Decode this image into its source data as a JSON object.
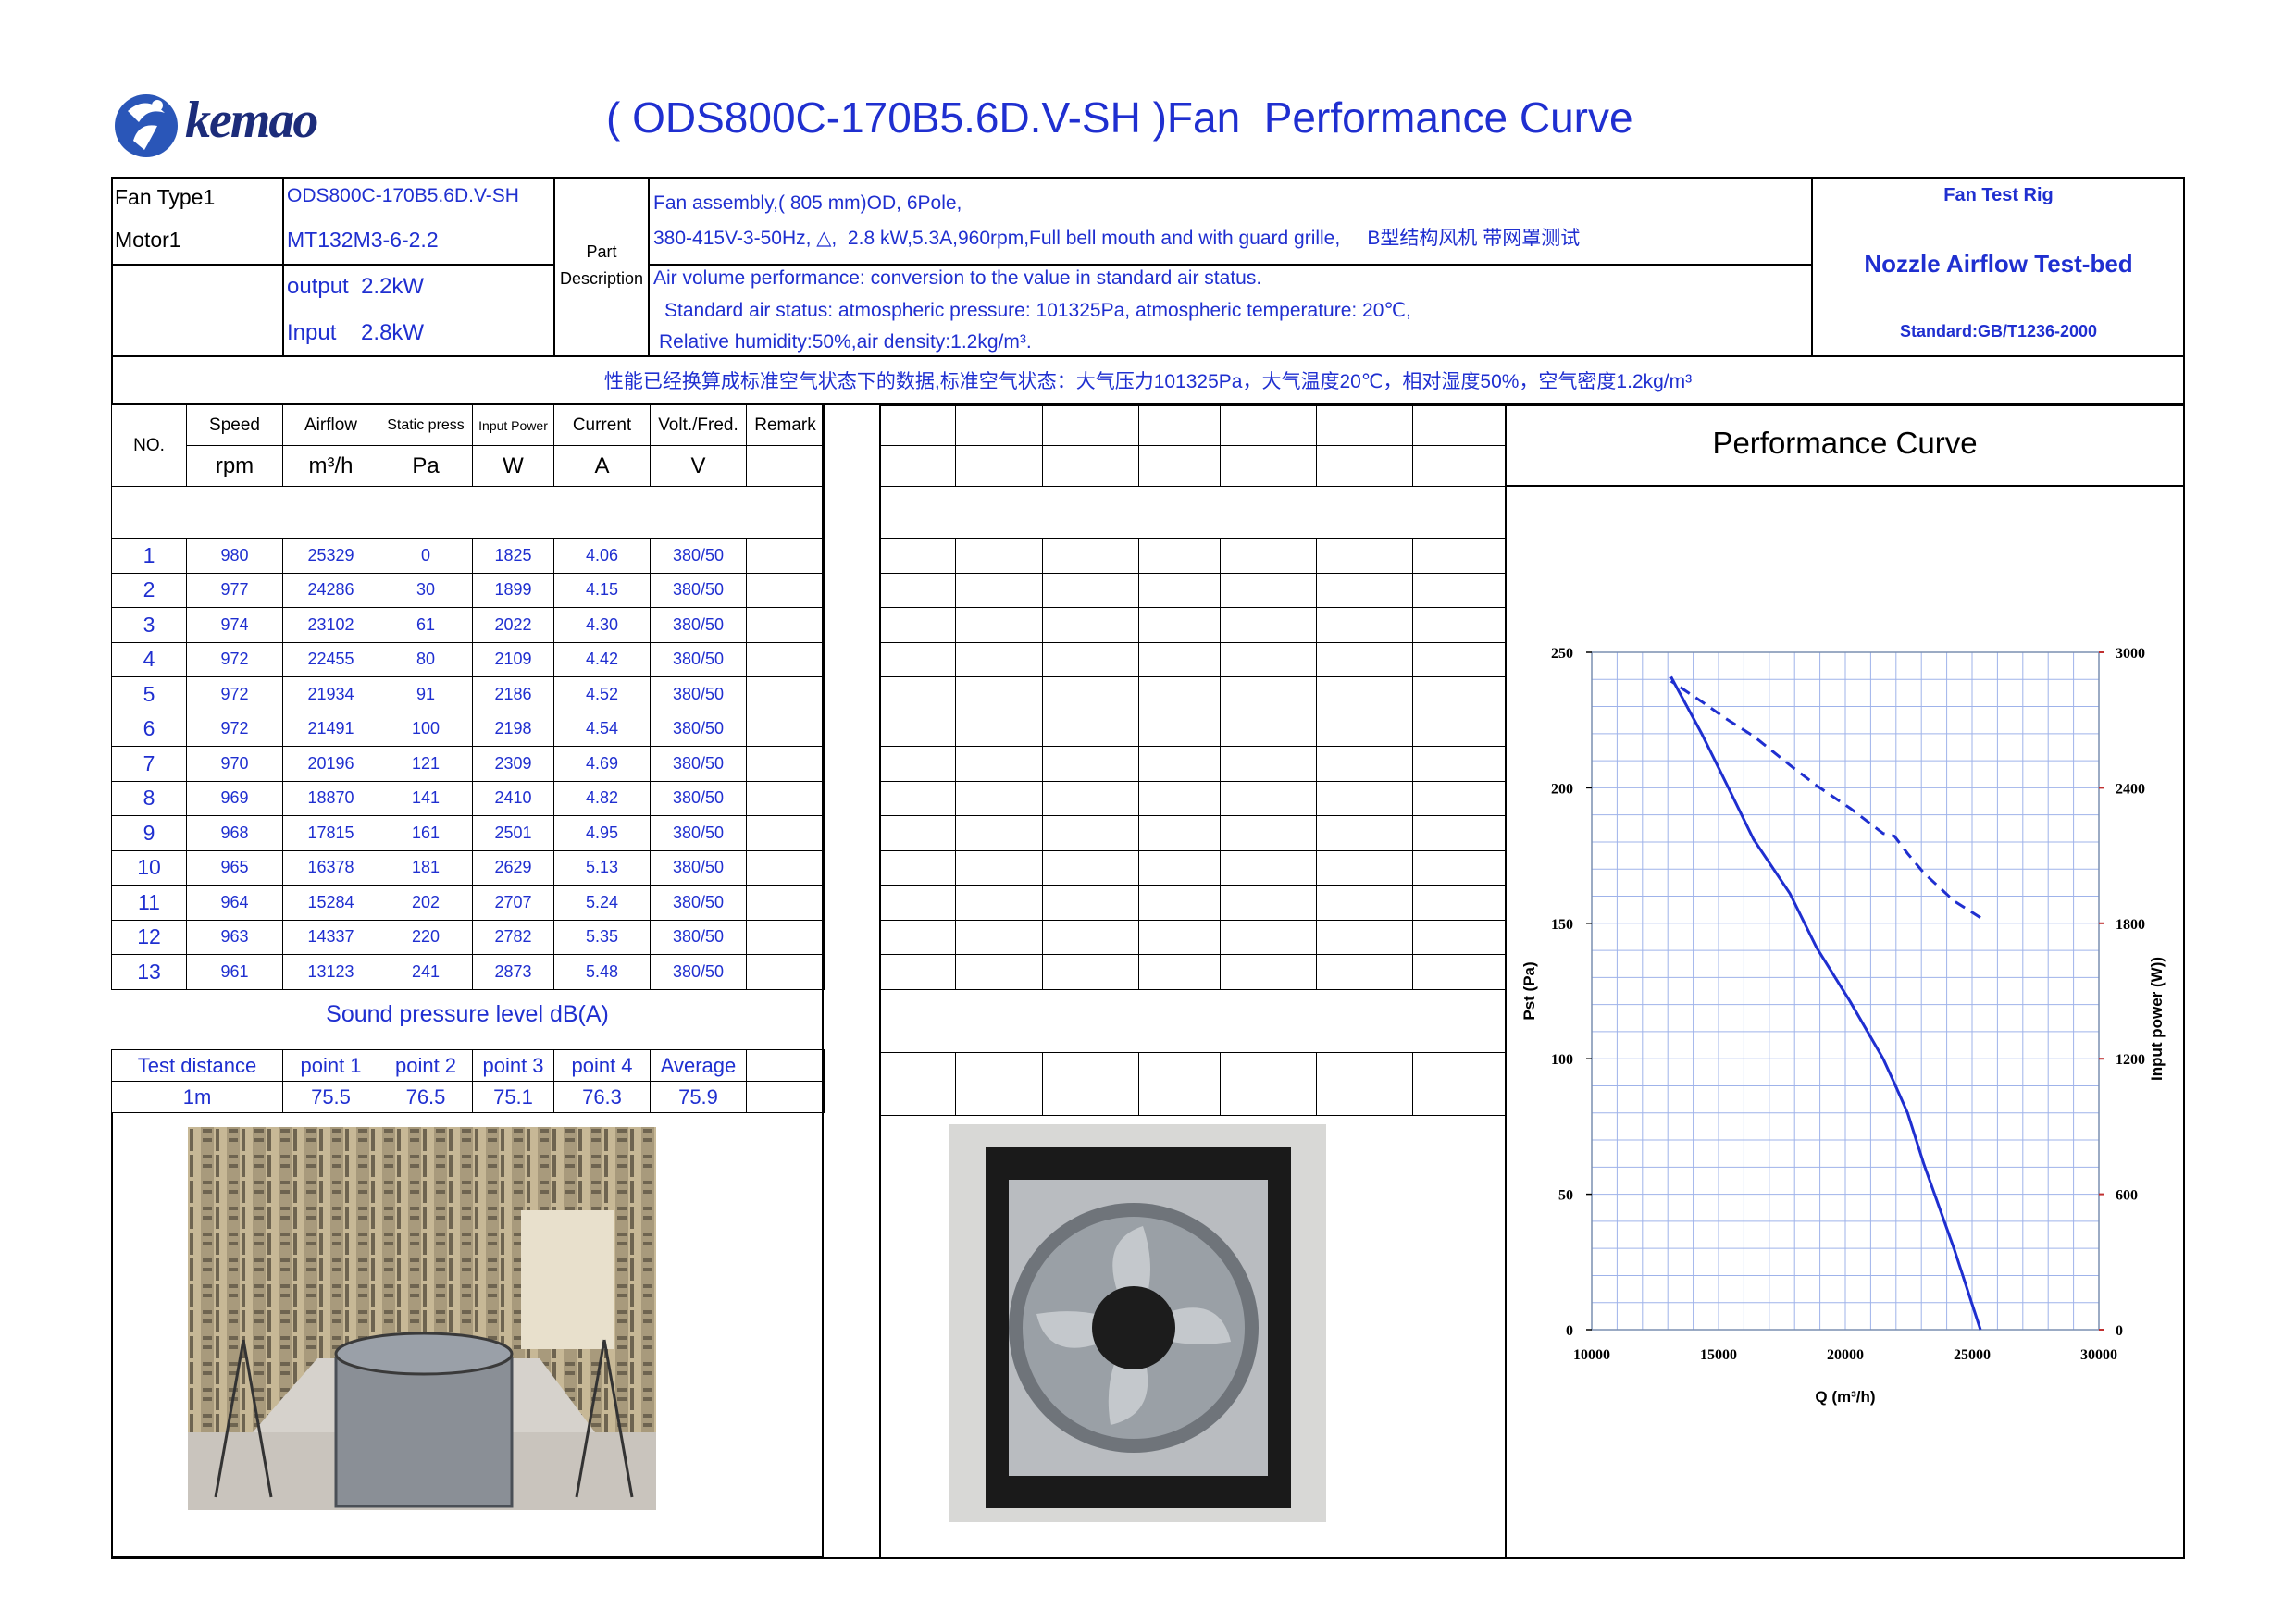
{
  "header": {
    "brand": "kemao",
    "title": "( ODS800C-170B5.6D.V-SH )Fan  Performance Curve"
  },
  "info": {
    "fan_type_label": "Fan Type1",
    "fan_type_value": "ODS800C-170B5.6D.V-SH",
    "motor_label": "Motor1",
    "motor_value": "MT132M3-6-2.2",
    "output": "output  2.2kW",
    "input": "Input    2.8kW",
    "part_desc_label1": "Part",
    "part_desc_label2": "Description",
    "desc_line1": "Fan assembly,( 805 mm)OD, 6Pole,",
    "desc_line2": "380-415V-3-50Hz, △,  2.8 kW,5.3A,960rpm,Full bell mouth and with guard grille,     B型结构风机 带网罩测试",
    "air_line1": "Air volume performance: conversion to the value in standard air status.",
    "air_line2": "Standard air status: atmospheric pressure: 101325Pa, atmospheric temperature: 20℃,",
    "air_line3": "Relative humidity:50%,air density:1.2kg/m³.",
    "rig_title": "Fan Test Rig",
    "rig_name": "Nozzle Airflow Test-bed",
    "rig_standard": "Standard:GB/T1236-2000",
    "cn_note": "性能已经换算成标准空气状态下的数据,标准空气状态：大气压力101325Pa，大气温度20℃，相对湿度50%，空气密度1.2kg/m³"
  },
  "table": {
    "headers": [
      "NO.",
      "Speed",
      "Airflow",
      "Static press",
      "Input Power",
      "Current",
      "Volt./Fred.",
      "Remark"
    ],
    "units": [
      "rpm",
      "m³/h",
      "Pa",
      "W",
      "A",
      "V"
    ],
    "rows": [
      [
        "1",
        "980",
        "25329",
        "0",
        "1825",
        "4.06",
        "380/50"
      ],
      [
        "2",
        "977",
        "24286",
        "30",
        "1899",
        "4.15",
        "380/50"
      ],
      [
        "3",
        "974",
        "23102",
        "61",
        "2022",
        "4.30",
        "380/50"
      ],
      [
        "4",
        "972",
        "22455",
        "80",
        "2109",
        "4.42",
        "380/50"
      ],
      [
        "5",
        "972",
        "21934",
        "91",
        "2186",
        "4.52",
        "380/50"
      ],
      [
        "6",
        "972",
        "21491",
        "100",
        "2198",
        "4.54",
        "380/50"
      ],
      [
        "7",
        "970",
        "20196",
        "121",
        "2309",
        "4.69",
        "380/50"
      ],
      [
        "8",
        "969",
        "18870",
        "141",
        "2410",
        "4.82",
        "380/50"
      ],
      [
        "9",
        "968",
        "17815",
        "161",
        "2501",
        "4.95",
        "380/50"
      ],
      [
        "10",
        "965",
        "16378",
        "181",
        "2629",
        "5.13",
        "380/50"
      ],
      [
        "11",
        "964",
        "15284",
        "202",
        "2707",
        "5.24",
        "380/50"
      ],
      [
        "12",
        "963",
        "14337",
        "220",
        "2782",
        "5.35",
        "380/50"
      ],
      [
        "13",
        "961",
        "13123",
        "241",
        "2873",
        "5.48",
        "380/50"
      ]
    ]
  },
  "sound": {
    "title": "Sound pressure level dB(A)",
    "labels": [
      "Test distance",
      "point 1",
      "point 2",
      "point 3",
      "point 4",
      "Average"
    ],
    "values": [
      "1m",
      "75.5",
      "76.5",
      "75.1",
      "76.3",
      "75.9"
    ]
  },
  "chart_data": {
    "type": "line",
    "title": "Performance Curve",
    "xlabel": "Q (m³/h)",
    "ylabel": "Pst (Pa)",
    "y2label": "Input power  (W))",
    "xlim": [
      10000,
      30000
    ],
    "ylim": [
      0,
      250
    ],
    "y2lim": [
      0,
      3000
    ],
    "xticks": [
      "10000",
      "15000",
      "20000",
      "25000",
      "30000"
    ],
    "yticks": [
      "0",
      "50",
      "100",
      "150",
      "200",
      "250"
    ],
    "y2ticks": [
      "0",
      "600",
      "1200",
      "1800",
      "2400",
      "3000"
    ],
    "grid": true,
    "series": [
      {
        "axis": "left",
        "style": "solid",
        "color": "#1f2fd0",
        "x": [
          25329,
          24286,
          23102,
          22455,
          21934,
          21491,
          20196,
          18870,
          17815,
          16378,
          15284,
          14337,
          13123
        ],
        "y": [
          0,
          30,
          61,
          80,
          91,
          100,
          121,
          141,
          161,
          181,
          202,
          220,
          241
        ]
      },
      {
        "axis": "right",
        "style": "dashed",
        "color": "#1f2fd0",
        "x": [
          25329,
          24286,
          23102,
          22455,
          21934,
          21491,
          20196,
          18870,
          17815,
          16378,
          15284,
          14337,
          13123
        ],
        "y": [
          1825,
          1899,
          2022,
          2109,
          2186,
          2198,
          2309,
          2410,
          2501,
          2629,
          2707,
          2782,
          2873
        ]
      }
    ]
  }
}
